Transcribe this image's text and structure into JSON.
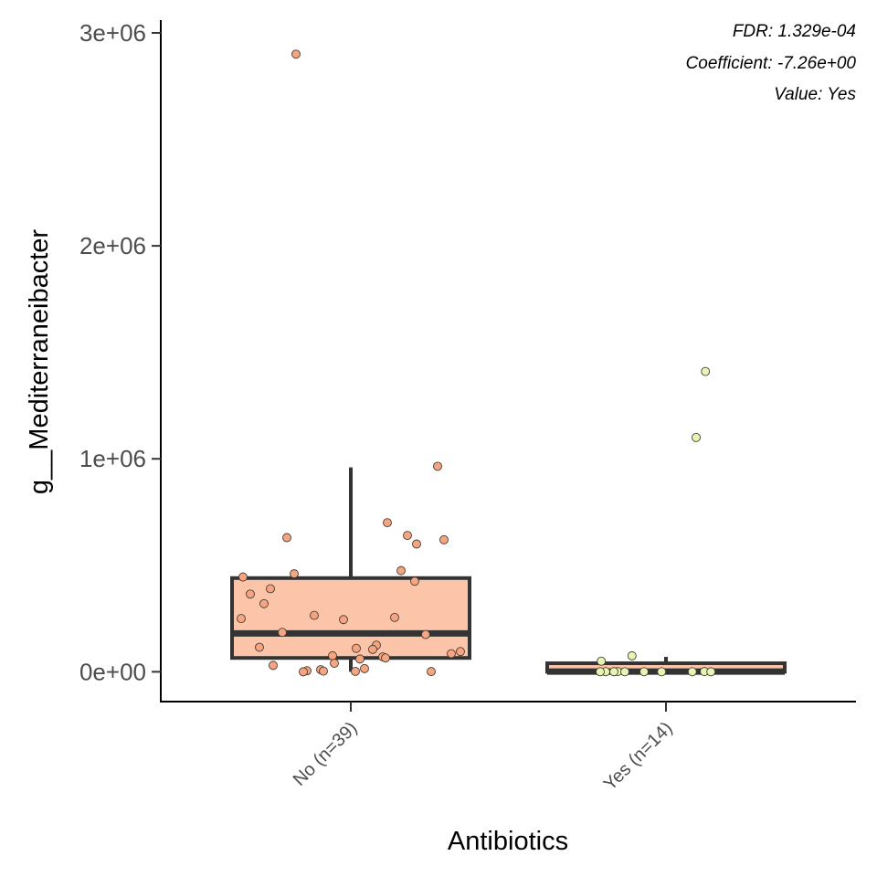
{
  "chart_data": {
    "type": "box",
    "xlabel": "Antibiotics",
    "ylabel": "g__Mediterraneibacter",
    "ylim": [
      -140000,
      3060000
    ],
    "yticks": [
      0,
      1000000,
      2000000,
      3000000
    ],
    "ytick_labels": [
      "0e+00",
      "1e+06",
      "2e+06",
      "3e+06"
    ],
    "grid": false,
    "annotations": [
      "FDR: 1.329e-04",
      "Coefficient: -7.26e+00",
      "Value: Yes"
    ],
    "categories": [
      "No (n=39)",
      "Yes (n=14)"
    ],
    "colors": {
      "no_fill": "#fcc5aa",
      "no_point": "#f4a582",
      "yes_fill": "#fcc5aa",
      "yes_point": "#e6f5b6",
      "box_stroke": "#333333",
      "point_stroke": "#4a3b30"
    },
    "boxes": [
      {
        "category": "No (n=39)",
        "q1": 65000,
        "median": 180000,
        "q3": 440000,
        "whisker_low": 0,
        "whisker_high": 960000,
        "points": [
          2900000,
          965000,
          700000,
          640000,
          630000,
          620000,
          600000,
          475000,
          460000,
          445000,
          425000,
          390000,
          365000,
          320000,
          265000,
          255000,
          250000,
          245000,
          185000,
          175000,
          125000,
          115000,
          110000,
          105000,
          95000,
          85000,
          75000,
          70000,
          65000,
          60000,
          40000,
          30000,
          15000,
          10000,
          5000,
          3000,
          2000,
          1000,
          0
        ]
      },
      {
        "category": "Yes (n=14)",
        "q1": 0,
        "median": 1000,
        "q3": 40000,
        "whisker_low": 0,
        "whisker_high": 70000,
        "points": [
          1410000,
          1100000,
          75000,
          50000,
          1000,
          800,
          600,
          500,
          400,
          300,
          200,
          100,
          50,
          0
        ]
      }
    ]
  }
}
